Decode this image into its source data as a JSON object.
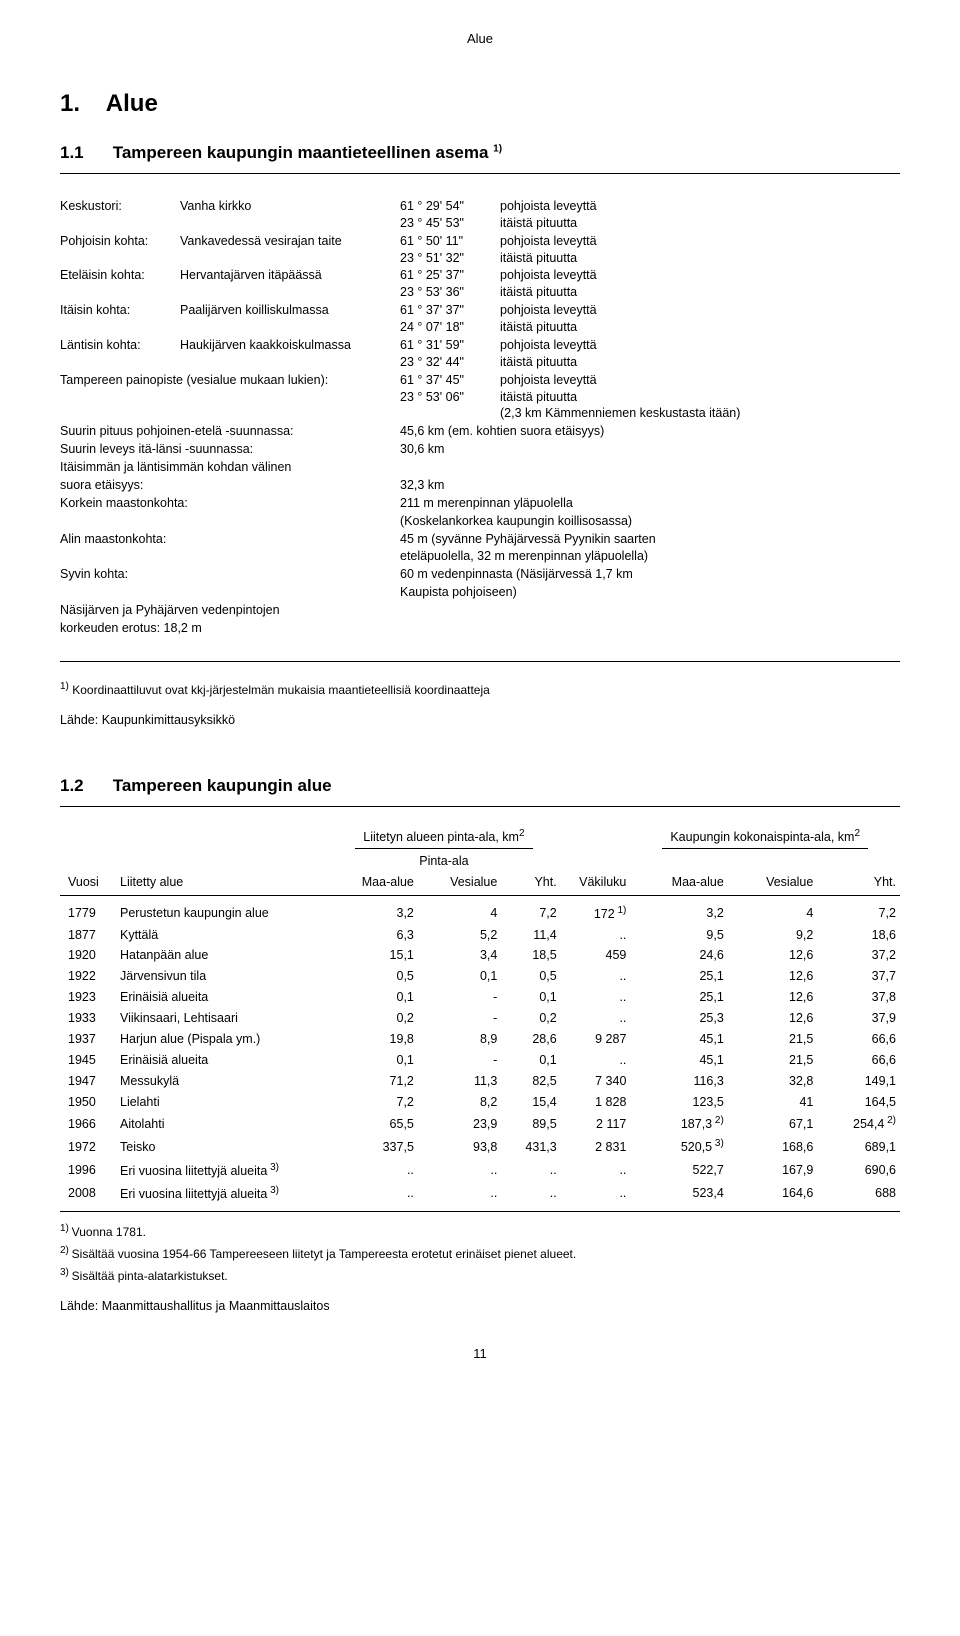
{
  "page_header": "Alue",
  "section1": {
    "number": "1.",
    "title": "Alue"
  },
  "sub11": {
    "number": "1.1",
    "title": "Tampereen kaupungin maantieteellinen asema",
    "sup": "1)"
  },
  "defs": [
    {
      "k1": "Keskustori:",
      "k2": "Vanha kirkko",
      "lines": [
        {
          "c": "61 ° 29' 54\"",
          "t": "pohjoista leveyttä"
        },
        {
          "c": "23 ° 45' 53\"",
          "t": "itäistä pituutta"
        }
      ]
    },
    {
      "k1": "Pohjoisin kohta:",
      "k2": "Vankavedessä vesirajan taite",
      "lines": [
        {
          "c": "61 ° 50' 11\"",
          "t": "pohjoista leveyttä"
        },
        {
          "c": "23 ° 51' 32\"",
          "t": "itäistä pituutta"
        }
      ]
    },
    {
      "k1": "Eteläisin kohta:",
      "k2": "Hervantajärven itäpäässä",
      "lines": [
        {
          "c": "61 ° 25' 37\"",
          "t": "pohjoista leveyttä"
        },
        {
          "c": "23 ° 53' 36\"",
          "t": "itäistä pituutta"
        }
      ]
    },
    {
      "k1": "Itäisin kohta:",
      "k2": "Paalijärven koilliskulmassa",
      "lines": [
        {
          "c": "61 ° 37' 37\"",
          "t": "pohjoista leveyttä"
        },
        {
          "c": "24 ° 07' 18\"",
          "t": "itäistä pituutta"
        }
      ]
    },
    {
      "k1": "Läntisin kohta:",
      "k2": "Haukijärven kaakkoiskulmassa",
      "lines": [
        {
          "c": "61 ° 31' 59\"",
          "t": "pohjoista leveyttä"
        },
        {
          "c": "23 ° 32' 44\"",
          "t": "itäistä pituutta"
        }
      ]
    },
    {
      "k1full": "Tampereen painopiste (vesialue mukaan lukien):",
      "lines": [
        {
          "c": "61 ° 37' 45\"",
          "t": "pohjoista leveyttä"
        },
        {
          "c": "23 ° 53' 06\"",
          "t": "itäistä pituutta"
        },
        {
          "c": "",
          "t": "(2,3 km Kämmenniemen keskustasta itään)"
        }
      ]
    }
  ],
  "textrows": [
    {
      "label": "Suurin pituus pohjoinen-etelä -suunnassa:",
      "value": "45,6 km (em. kohtien suora etäisyys)"
    },
    {
      "label": "Suurin leveys itä-länsi -suunnassa:",
      "value": "30,6 km"
    },
    {
      "label": "Itäisimmän ja läntisimmän kohdan välinen",
      "value": ""
    },
    {
      "label": "suora etäisyys:",
      "value": "32,3 km"
    },
    {
      "label": "Korkein maastonkohta:",
      "value": "211 m merenpinnan yläpuolella"
    },
    {
      "label": "",
      "value": "(Koskelankorkea kaupungin koillisosassa)"
    },
    {
      "label": "Alin maastonkohta:",
      "value": "45 m (syvänne Pyhäjärvessä Pyynikin saarten"
    },
    {
      "label": "",
      "value": "eteläpuolella, 32 m merenpinnan yläpuolella)"
    },
    {
      "label": "Syvin kohta:",
      "value": "60 m vedenpinnasta (Näsijärvessä 1,7 km"
    },
    {
      "label": "",
      "value": "Kaupista pohjoiseen)"
    },
    {
      "label": "Näsijärven ja Pyhäjärven vedenpintojen",
      "value": ""
    },
    {
      "label": "korkeuden erotus: 18,2 m",
      "value": ""
    }
  ],
  "foot11": "Koordinaattiluvut ovat kkj-järjestelmän mukaisia maantieteellisiä koordinaatteja",
  "foot11_sup": "1)",
  "source11": "Lähde: Kaupunkimittausyksikkö",
  "sub12": {
    "number": "1.2",
    "title": "Tampereen kaupungin alue"
  },
  "tbl": {
    "group1": "Liitetyn alueen pinta-ala, km",
    "group1_sup": "2",
    "group2": "Kaupungin kokonaispinta-ala, km",
    "group2_sup": "2",
    "sub": "Pinta-ala",
    "h_year": "Vuosi",
    "h_region": "Liitetty alue",
    "cols": [
      "Maa-alue",
      "Vesialue",
      "Yht.",
      "Väkiluku",
      "Maa-alue",
      "Vesialue",
      "Yht."
    ],
    "rows": [
      {
        "y": "1779",
        "r": "Perustetun kaupungin alue",
        "v": [
          "3,2",
          "4",
          "7,2",
          "172",
          "3,2",
          "4",
          "7,2"
        ],
        "sup4": "1)"
      },
      {
        "y": "1877",
        "r": "Kyttälä",
        "v": [
          "6,3",
          "5,2",
          "11,4",
          "..",
          "9,5",
          "9,2",
          "18,6"
        ]
      },
      {
        "y": "1920",
        "r": "Hatanpään alue",
        "v": [
          "15,1",
          "3,4",
          "18,5",
          "459",
          "24,6",
          "12,6",
          "37,2"
        ]
      },
      {
        "y": "1922",
        "r": "Järvensivun tila",
        "v": [
          "0,5",
          "0,1",
          "0,5",
          "..",
          "25,1",
          "12,6",
          "37,7"
        ]
      },
      {
        "y": "1923",
        "r": "Erinäisiä alueita",
        "v": [
          "0,1",
          "-",
          "0,1",
          "..",
          "25,1",
          "12,6",
          "37,8"
        ]
      },
      {
        "y": "1933",
        "r": "Viikinsaari, Lehtisaari",
        "v": [
          "0,2",
          "-",
          "0,2",
          "..",
          "25,3",
          "12,6",
          "37,9"
        ]
      },
      {
        "y": "1937",
        "r": "Harjun alue (Pispala ym.)",
        "v": [
          "19,8",
          "8,9",
          "28,6",
          "9 287",
          "45,1",
          "21,5",
          "66,6"
        ]
      },
      {
        "y": "1945",
        "r": "Erinäisiä alueita",
        "v": [
          "0,1",
          "-",
          "0,1",
          "..",
          "45,1",
          "21,5",
          "66,6"
        ]
      },
      {
        "y": "1947",
        "r": "Messukylä",
        "v": [
          "71,2",
          "11,3",
          "82,5",
          "7 340",
          "116,3",
          "32,8",
          "149,1"
        ]
      },
      {
        "y": "1950",
        "r": "Lielahti",
        "v": [
          "7,2",
          "8,2",
          "15,4",
          "1 828",
          "123,5",
          "41",
          "164,5"
        ]
      },
      {
        "y": "1966",
        "r": "Aitolahti",
        "v": [
          "65,5",
          "23,9",
          "89,5",
          "2 117",
          "187,3",
          "67,1",
          "254,4"
        ],
        "sup5": "2)",
        "sup7": "2)"
      },
      {
        "y": "1972",
        "r": "Teisko",
        "v": [
          "337,5",
          "93,8",
          "431,3",
          "2 831",
          "520,5",
          "168,6",
          "689,1"
        ],
        "sup5": "3)"
      },
      {
        "y": "1996",
        "r": "Eri vuosina liitettyjä alueita",
        "rs": "3)",
        "v": [
          "..",
          "..",
          "..",
          "..",
          "522,7",
          "167,9",
          "690,6"
        ]
      },
      {
        "y": "2008",
        "r": "Eri vuosina liitettyjä alueita",
        "rs": "3)",
        "v": [
          "..",
          "..",
          "..",
          "..",
          "523,4",
          "164,6",
          "688"
        ]
      }
    ]
  },
  "foot12": [
    {
      "sup": "1)",
      "t": "Vuonna 1781."
    },
    {
      "sup": "2)",
      "t": "Sisältää vuosina 1954-66 Tampereeseen liitetyt ja Tampereesta erotetut erinäiset pienet alueet."
    },
    {
      "sup": "3)",
      "t": "Sisältää pinta-alatarkistukset."
    }
  ],
  "source12": "Lähde: Maanmittaushallitus ja Maanmittauslaitos",
  "page_num": "11"
}
